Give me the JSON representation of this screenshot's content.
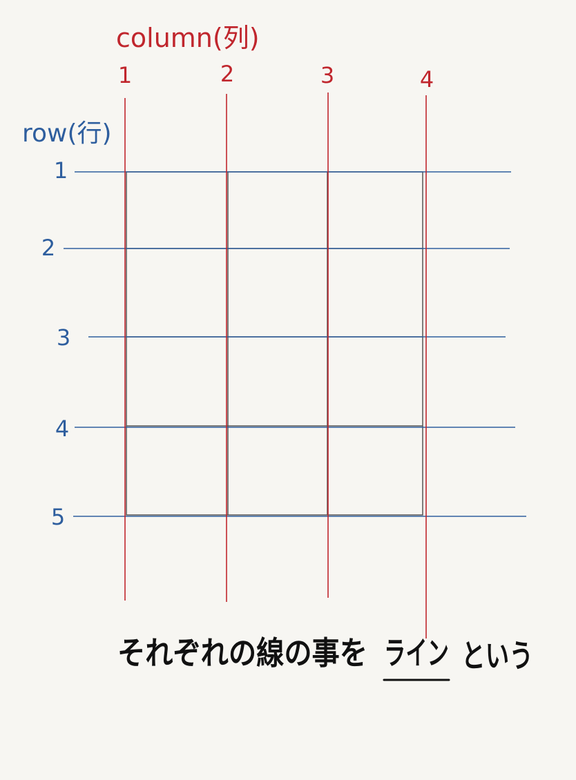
{
  "column_title": "column(列)",
  "row_title": "row(行)",
  "column_numbers": [
    "1",
    "2",
    "3",
    "4"
  ],
  "row_numbers": [
    "1",
    "2",
    "3",
    "4",
    "5"
  ],
  "caption": {
    "before": "それぞれの線の事を",
    "highlight": "ライン",
    "after": "という"
  },
  "colors": {
    "column_line": "#c0262d",
    "row_line": "#2e5e9e",
    "cell_border": "#555555",
    "text": "#111111",
    "background": "#f7f6f2"
  }
}
